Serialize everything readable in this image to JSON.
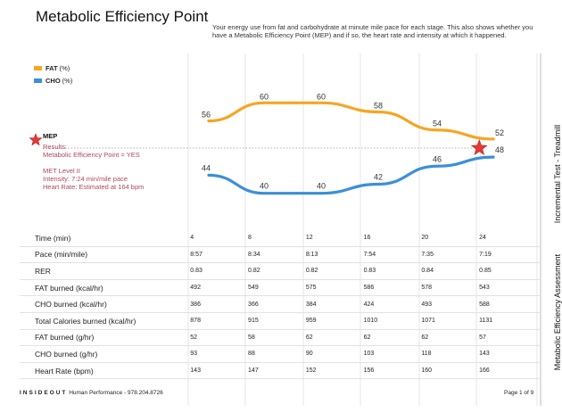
{
  "header": {
    "title": "Metabolic Efficiency Point",
    "description": "Your energy use from fat and carbohydrate at minute mile pace for each stage. This also shows whether you have a Metabolic Efficiency Point (MEP) and if so, the heart rate and intensity at which it happened."
  },
  "side": {
    "test": "Incremental Test - Treadmill",
    "report": "Metabolic Efficiency Assessment"
  },
  "mep": {
    "label": "MEP",
    "lines": [
      "Results:",
      "Metabolic Efficiency Point = YES",
      "",
      "MET Level II",
      "Intensity: 7:24 min/mile pace",
      "Heart Rate: Estimated at 164 bpm"
    ],
    "color": "#e53935"
  },
  "chart_data": {
    "type": "line",
    "x": [
      4,
      8,
      12,
      16,
      20,
      24
    ],
    "series": [
      {
        "name": "FAT",
        "unit": "(%)",
        "values": [
          56,
          60,
          60,
          58,
          54,
          52
        ],
        "color": "#f5a623"
      },
      {
        "name": "CHO",
        "unit": "(%)",
        "values": [
          44,
          40,
          40,
          42,
          46,
          48
        ],
        "color": "#3b8fd9"
      }
    ],
    "mep_point": {
      "x": 23,
      "y": 50
    },
    "ylim": [
      35,
      65
    ],
    "legend_position": "top-left",
    "grid": "vertical"
  },
  "table": {
    "rows": [
      {
        "label": "Time (min)",
        "values": [
          "4",
          "8",
          "12",
          "16",
          "20",
          "24"
        ]
      },
      {
        "label": "Pace (min/mile)",
        "values": [
          "8:57",
          "8:34",
          "8:13",
          "7:54",
          "7:35",
          "7:19"
        ]
      },
      {
        "label": "RER",
        "values": [
          "0.83",
          "0.82",
          "0.82",
          "0.83",
          "0.84",
          "0.85"
        ]
      },
      {
        "label": "FAT burned (kcal/hr)",
        "values": [
          "492",
          "549",
          "575",
          "586",
          "578",
          "543"
        ]
      },
      {
        "label": "CHO burned (kcal/hr)",
        "values": [
          "386",
          "366",
          "384",
          "424",
          "493",
          "588"
        ]
      },
      {
        "label": "Total Calories burned (kcal/hr)",
        "values": [
          "878",
          "915",
          "959",
          "1010",
          "1071",
          "1131"
        ]
      },
      {
        "label": "FAT burned (g/hr)",
        "values": [
          "52",
          "58",
          "62",
          "62",
          "62",
          "57"
        ]
      },
      {
        "label": "CHO burned (g/hr)",
        "values": [
          "93",
          "88",
          "90",
          "103",
          "118",
          "143"
        ]
      },
      {
        "label": "Heart Rate (bpm)",
        "values": [
          "143",
          "147",
          "152",
          "156",
          "160",
          "166"
        ]
      }
    ]
  },
  "footer": {
    "brand": "INSIDEOUT",
    "company": " Human Performance - 978.204.8726",
    "page": "Page 1 of 9"
  }
}
